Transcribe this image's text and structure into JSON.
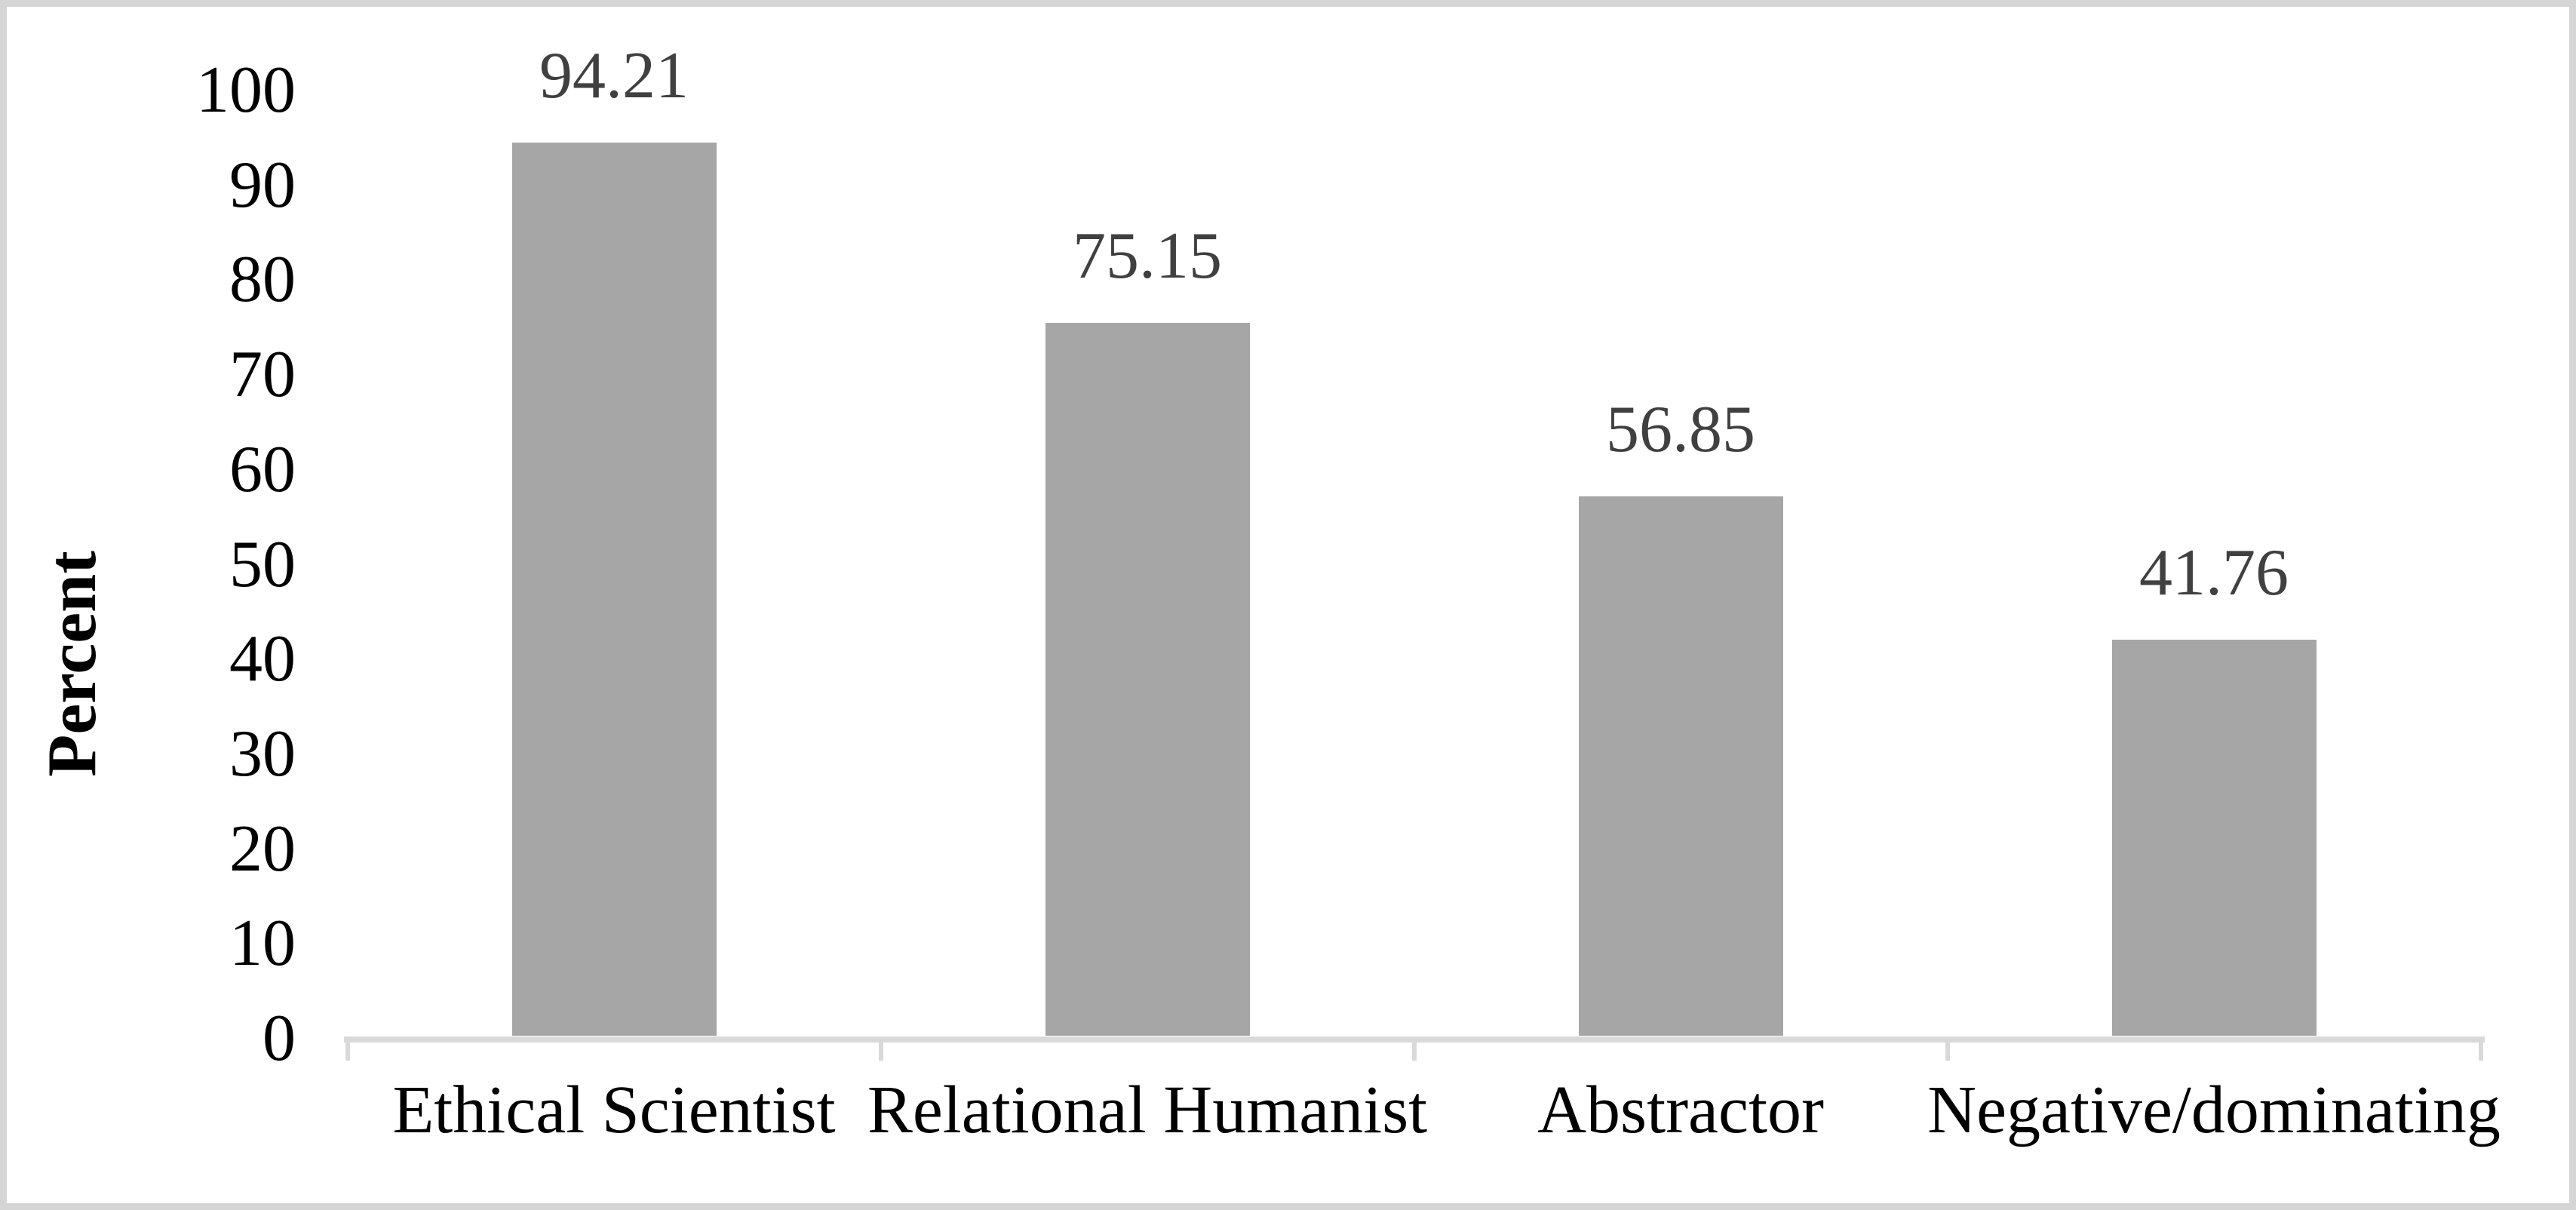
{
  "figure": {
    "background": "#ffffff",
    "frame_color": "#d5d5d5"
  },
  "chart_data": {
    "type": "bar",
    "title": "",
    "categories": [
      "Ethical Scientist",
      "Relational Humanist",
      "Abstractor",
      "Negative/dominating"
    ],
    "values": [
      94.21,
      75.15,
      56.85,
      41.76
    ],
    "data_labels": [
      "94.21",
      "75.15",
      "56.85",
      "41.76"
    ],
    "xlabel": "",
    "ylabel": "Percent",
    "ylim": [
      0,
      100
    ],
    "yticks": [
      0,
      10,
      20,
      30,
      40,
      50,
      60,
      70,
      80,
      90,
      100
    ],
    "grid": false,
    "legend": false,
    "bar_color": "#a6a6a6",
    "axis_line_color": "#d9d9d9",
    "data_label_color": "#404040",
    "tick_label_color": "#000000"
  }
}
